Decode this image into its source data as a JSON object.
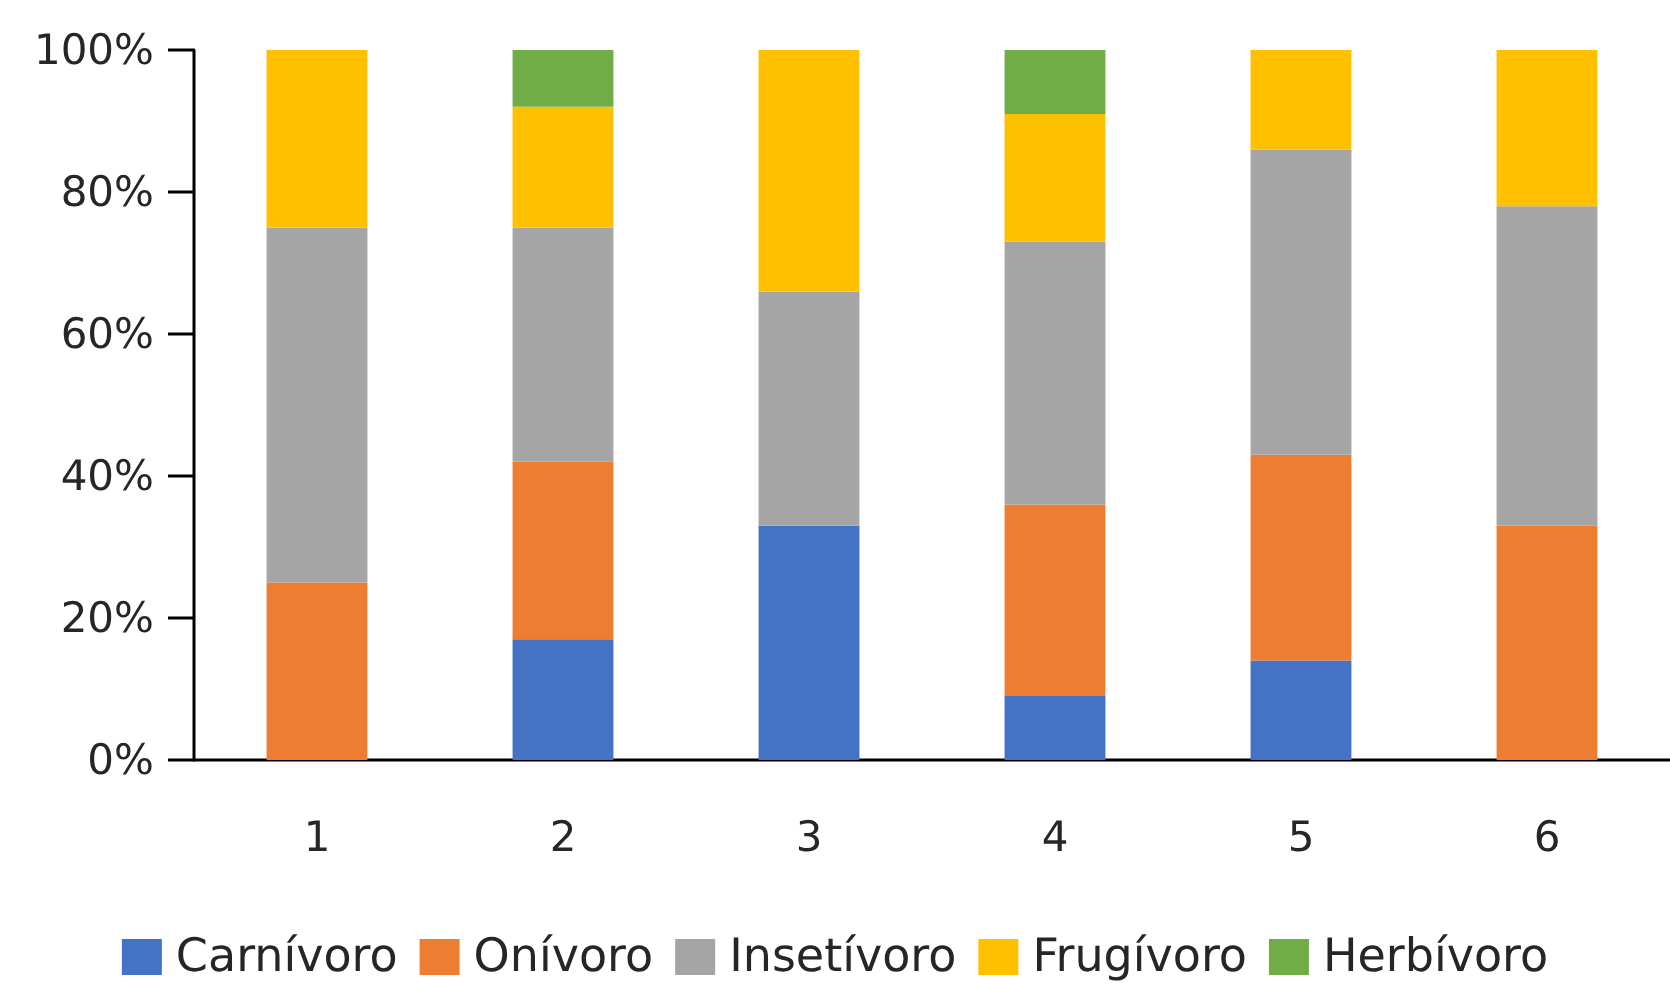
{
  "chart_data": {
    "type": "bar",
    "stacked": true,
    "categories": [
      "1",
      "2",
      "3",
      "4",
      "5",
      "6"
    ],
    "series": [
      {
        "name": "Carnívoro",
        "color": "#4472c4",
        "values": [
          0,
          17,
          33,
          9,
          14,
          0
        ]
      },
      {
        "name": "Onívoro",
        "color": "#ed7d31",
        "values": [
          25,
          25,
          0,
          27,
          29,
          33
        ]
      },
      {
        "name": "Insetívoro",
        "color": "#a5a5a5",
        "values": [
          50,
          33,
          33,
          37,
          43,
          45
        ]
      },
      {
        "name": "Frugívoro",
        "color": "#ffc000",
        "values": [
          25,
          17,
          34,
          18,
          14,
          22
        ]
      },
      {
        "name": "Herbívoro",
        "color": "#70ad47",
        "values": [
          0,
          8,
          0,
          9,
          0,
          0
        ]
      }
    ],
    "ylim": [
      0,
      100
    ],
    "yticks": [
      {
        "value": 0,
        "label": "0%"
      },
      {
        "value": 20,
        "label": "20%"
      },
      {
        "value": 40,
        "label": "40%"
      },
      {
        "value": 60,
        "label": "60%"
      },
      {
        "value": 80,
        "label": "80%"
      },
      {
        "value": 100,
        "label": "100%"
      }
    ],
    "grid": false,
    "legend": "bottom"
  }
}
